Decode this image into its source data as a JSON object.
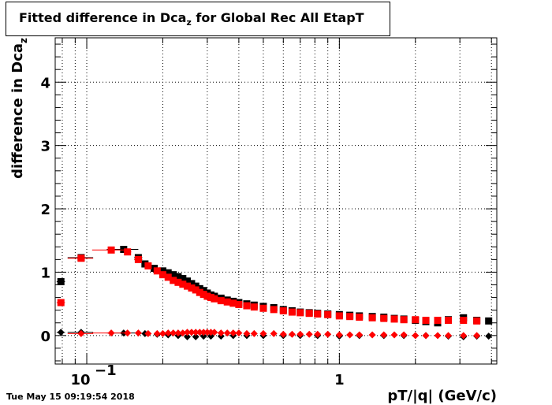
{
  "title": {
    "prefix": "Fitted difference in Dca",
    "subscript": "z",
    "suffix": " for Global Rec All EtapT"
  },
  "footer_date": "Tue May 15 09:19:54 2018",
  "colors": {
    "black": "#000000",
    "red": "#ff0000"
  },
  "chart_data": {
    "type": "scatter",
    "xlabel": "pT/|q| (GeV/c)",
    "ylabel": {
      "prefix": "difference in Dca",
      "subscript": "z"
    },
    "x_scale": "log",
    "xlim": [
      0.075,
      4.2
    ],
    "ylim": [
      -0.45,
      4.7
    ],
    "x_tick_labels": [
      {
        "value": 0.1,
        "base": "10",
        "exp": "−1"
      },
      {
        "value": 1,
        "base": "1",
        "exp": ""
      }
    ],
    "y_tick_labels": [
      "0",
      "1",
      "2",
      "3",
      "4"
    ],
    "grid": true,
    "series": [
      {
        "marker": "square",
        "color": "#000000",
        "points": [
          [
            0.079,
            0.85,
            0.003
          ],
          [
            0.095,
            1.23,
            0.011
          ],
          [
            0.14,
            1.36,
            0.02
          ],
          [
            0.16,
            1.23,
            0.006
          ],
          [
            0.17,
            1.13,
            0.005
          ],
          [
            0.185,
            1.06,
            0.005
          ],
          [
            0.2,
            1.02,
            0.005
          ],
          [
            0.21,
            0.99,
            0.005
          ],
          [
            0.22,
            0.96,
            0.005
          ],
          [
            0.23,
            0.93,
            0.005
          ],
          [
            0.24,
            0.9,
            0.005
          ],
          [
            0.25,
            0.86,
            0.005
          ],
          [
            0.26,
            0.82,
            0.005
          ],
          [
            0.27,
            0.78,
            0.005
          ],
          [
            0.28,
            0.74,
            0.005
          ],
          [
            0.29,
            0.71,
            0.005
          ],
          [
            0.3,
            0.67,
            0.005
          ],
          [
            0.31,
            0.64,
            0.005
          ],
          [
            0.32,
            0.62,
            0.005
          ],
          [
            0.34,
            0.59,
            0.005
          ],
          [
            0.36,
            0.56,
            0.005
          ],
          [
            0.38,
            0.54,
            0.005
          ],
          [
            0.4,
            0.52,
            0.005
          ],
          [
            0.43,
            0.5,
            0.01
          ],
          [
            0.46,
            0.48,
            0.01
          ],
          [
            0.5,
            0.46,
            0.01
          ],
          [
            0.55,
            0.44,
            0.01
          ],
          [
            0.6,
            0.41,
            0.01
          ],
          [
            0.65,
            0.39,
            0.01
          ],
          [
            0.7,
            0.37,
            0.01
          ],
          [
            0.76,
            0.36,
            0.01
          ],
          [
            0.82,
            0.35,
            0.01
          ],
          [
            0.9,
            0.34,
            0.02
          ],
          [
            1.0,
            0.33,
            0.02
          ],
          [
            1.1,
            0.32,
            0.02
          ],
          [
            1.2,
            0.31,
            0.02
          ],
          [
            1.35,
            0.3,
            0.02
          ],
          [
            1.5,
            0.29,
            0.02
          ],
          [
            1.65,
            0.27,
            0.02
          ],
          [
            1.8,
            0.26,
            0.02
          ],
          [
            2.0,
            0.24,
            0.02
          ],
          [
            2.2,
            0.22,
            0.03
          ],
          [
            2.45,
            0.2,
            0.03
          ],
          [
            2.7,
            0.25,
            0.03
          ],
          [
            3.1,
            0.28,
            0.03
          ],
          [
            3.5,
            0.24,
            0.03
          ],
          [
            3.9,
            0.23,
            0.03
          ]
        ]
      },
      {
        "marker": "square",
        "color": "#ff0000",
        "points": [
          [
            0.079,
            0.52,
            0.003
          ],
          [
            0.095,
            1.22,
            0.011
          ],
          [
            0.125,
            1.35,
            0.02
          ],
          [
            0.145,
            1.32,
            0.005
          ],
          [
            0.16,
            1.2,
            0.006
          ],
          [
            0.175,
            1.1,
            0.005
          ],
          [
            0.19,
            1.02,
            0.005
          ],
          [
            0.2,
            0.96,
            0.005
          ],
          [
            0.21,
            0.92,
            0.005
          ],
          [
            0.22,
            0.87,
            0.005
          ],
          [
            0.23,
            0.84,
            0.005
          ],
          [
            0.24,
            0.81,
            0.005
          ],
          [
            0.25,
            0.78,
            0.005
          ],
          [
            0.26,
            0.75,
            0.005
          ],
          [
            0.27,
            0.72,
            0.005
          ],
          [
            0.28,
            0.68,
            0.005
          ],
          [
            0.29,
            0.65,
            0.005
          ],
          [
            0.3,
            0.62,
            0.005
          ],
          [
            0.31,
            0.6,
            0.005
          ],
          [
            0.32,
            0.58,
            0.005
          ],
          [
            0.34,
            0.55,
            0.005
          ],
          [
            0.36,
            0.53,
            0.005
          ],
          [
            0.38,
            0.51,
            0.005
          ],
          [
            0.4,
            0.49,
            0.005
          ],
          [
            0.43,
            0.47,
            0.01
          ],
          [
            0.46,
            0.45,
            0.01
          ],
          [
            0.5,
            0.43,
            0.01
          ],
          [
            0.55,
            0.41,
            0.01
          ],
          [
            0.6,
            0.39,
            0.01
          ],
          [
            0.65,
            0.37,
            0.01
          ],
          [
            0.7,
            0.36,
            0.01
          ],
          [
            0.76,
            0.35,
            0.01
          ],
          [
            0.82,
            0.34,
            0.01
          ],
          [
            0.9,
            0.33,
            0.02
          ],
          [
            1.0,
            0.31,
            0.02
          ],
          [
            1.1,
            0.3,
            0.02
          ],
          [
            1.2,
            0.29,
            0.02
          ],
          [
            1.35,
            0.28,
            0.02
          ],
          [
            1.5,
            0.27,
            0.02
          ],
          [
            1.65,
            0.26,
            0.02
          ],
          [
            1.8,
            0.25,
            0.02
          ],
          [
            2.0,
            0.25,
            0.02
          ],
          [
            2.2,
            0.24,
            0.03
          ],
          [
            2.45,
            0.24,
            0.03
          ],
          [
            2.7,
            0.24,
            0.03
          ],
          [
            3.1,
            0.24,
            0.03
          ],
          [
            3.5,
            0.23,
            0.03
          ]
        ]
      },
      {
        "marker": "diamond",
        "color": "#000000",
        "points": [
          [
            0.079,
            0.05,
            0.003
          ],
          [
            0.095,
            0.05,
            0.011
          ],
          [
            0.14,
            0.04,
            0.02
          ],
          [
            0.17,
            0.03,
            0.005
          ],
          [
            0.19,
            0.02,
            0.005
          ],
          [
            0.21,
            0.01,
            0.005
          ],
          [
            0.23,
            0.0,
            0.005
          ],
          [
            0.25,
            -0.02,
            0.005
          ],
          [
            0.27,
            -0.02,
            0.005
          ],
          [
            0.29,
            -0.01,
            0.005
          ],
          [
            0.31,
            -0.01,
            0.005
          ],
          [
            0.34,
            -0.01,
            0.005
          ],
          [
            0.38,
            0.0,
            0.005
          ],
          [
            0.43,
            0.0,
            0.01
          ],
          [
            0.5,
            0.0,
            0.01
          ],
          [
            0.6,
            0.0,
            0.01
          ],
          [
            0.7,
            0.0,
            0.01
          ],
          [
            0.82,
            0.0,
            0.01
          ],
          [
            1.0,
            -0.01,
            0.02
          ],
          [
            1.2,
            0.0,
            0.02
          ],
          [
            1.5,
            0.0,
            0.02
          ],
          [
            1.8,
            0.0,
            0.02
          ],
          [
            2.2,
            0.0,
            0.03
          ],
          [
            2.7,
            -0.01,
            0.03
          ],
          [
            3.1,
            -0.02,
            0.03
          ],
          [
            3.5,
            -0.01,
            0.03
          ],
          [
            3.9,
            -0.01,
            0.03
          ]
        ]
      },
      {
        "marker": "diamond",
        "color": "#ff0000",
        "points": [
          [
            0.095,
            0.03,
            0.011
          ],
          [
            0.125,
            0.04,
            0.02
          ],
          [
            0.145,
            0.04,
            0.005
          ],
          [
            0.16,
            0.04,
            0.005
          ],
          [
            0.175,
            0.03,
            0.005
          ],
          [
            0.19,
            0.03,
            0.005
          ],
          [
            0.2,
            0.03,
            0.005
          ],
          [
            0.21,
            0.04,
            0.005
          ],
          [
            0.22,
            0.04,
            0.005
          ],
          [
            0.23,
            0.04,
            0.005
          ],
          [
            0.24,
            0.04,
            0.005
          ],
          [
            0.25,
            0.05,
            0.005
          ],
          [
            0.26,
            0.05,
            0.005
          ],
          [
            0.27,
            0.05,
            0.005
          ],
          [
            0.28,
            0.05,
            0.005
          ],
          [
            0.29,
            0.05,
            0.005
          ],
          [
            0.3,
            0.05,
            0.005
          ],
          [
            0.31,
            0.05,
            0.005
          ],
          [
            0.32,
            0.05,
            0.005
          ],
          [
            0.34,
            0.04,
            0.005
          ],
          [
            0.36,
            0.04,
            0.005
          ],
          [
            0.38,
            0.04,
            0.005
          ],
          [
            0.4,
            0.04,
            0.005
          ],
          [
            0.43,
            0.03,
            0.01
          ],
          [
            0.46,
            0.03,
            0.01
          ],
          [
            0.5,
            0.03,
            0.01
          ],
          [
            0.55,
            0.03,
            0.01
          ],
          [
            0.6,
            0.02,
            0.01
          ],
          [
            0.65,
            0.02,
            0.01
          ],
          [
            0.7,
            0.02,
            0.01
          ],
          [
            0.76,
            0.02,
            0.01
          ],
          [
            0.82,
            0.02,
            0.01
          ],
          [
            0.9,
            0.02,
            0.02
          ],
          [
            1.0,
            0.01,
            0.02
          ],
          [
            1.1,
            0.01,
            0.02
          ],
          [
            1.2,
            0.01,
            0.02
          ],
          [
            1.35,
            0.01,
            0.02
          ],
          [
            1.5,
            0.01,
            0.02
          ],
          [
            1.65,
            0.01,
            0.02
          ],
          [
            1.8,
            0.01,
            0.02
          ],
          [
            2.0,
            0.0,
            0.02
          ],
          [
            2.2,
            0.0,
            0.03
          ],
          [
            2.45,
            0.0,
            0.03
          ],
          [
            2.7,
            0.0,
            0.03
          ],
          [
            3.1,
            0.0,
            0.03
          ],
          [
            3.5,
            0.0,
            0.03
          ]
        ]
      }
    ]
  }
}
